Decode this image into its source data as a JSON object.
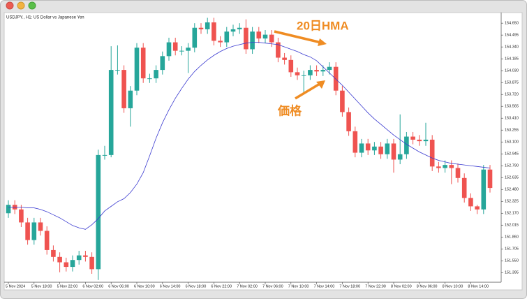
{
  "chart_data": {
    "type": "candlestick",
    "title": "USDJPY., H1:  US Dollar vs Japanese Yen",
    "annotations": [
      "20日HMA",
      "価格"
    ],
    "categories": [
      "5 Nov 2024",
      null,
      null,
      null,
      "5 Nov 18:00",
      null,
      null,
      null,
      "5 Nov 22:00",
      null,
      null,
      null,
      "6 Nov 02:00",
      null,
      null,
      null,
      "6 Nov 06:00",
      null,
      null,
      null,
      "6 Nov 10:00",
      null,
      null,
      null,
      "6 Nov 14:00",
      null,
      null,
      null,
      "6 Nov 18:00",
      null,
      null,
      null,
      "6 Nov 22:00",
      null,
      null,
      null,
      "7 Nov 02:00",
      null,
      null,
      null,
      "7 Nov 06:00",
      null,
      null,
      null,
      "7 Nov 10:00",
      null,
      null,
      null,
      "7 Nov 14:00",
      null,
      null,
      null,
      "7 Nov 18:00",
      null,
      null,
      null,
      "7 Nov 22:00",
      null,
      null,
      null,
      "8 Nov 02:00",
      null,
      null,
      null,
      "8 Nov 06:00",
      null,
      null,
      null,
      "8 Nov 10:00",
      null,
      null,
      null,
      "8 Nov 14:00",
      null,
      null,
      null
    ],
    "open": [
      152.17,
      152.28,
      152.22,
      152.05,
      151.82,
      152.05,
      151.94,
      151.69,
      151.6,
      151.53,
      151.47,
      151.56,
      151.62,
      151.6,
      151.44,
      152.93,
      152.93,
      154.04,
      154.04,
      153.54,
      153.77,
      154.33,
      153.93,
      153.93,
      154.04,
      154.22,
      154.4,
      154.29,
      154.29,
      154.33,
      154.59,
      154.57,
      154.66,
      154.42,
      154.4,
      154.54,
      154.57,
      154.59,
      154.31,
      154.54,
      154.45,
      154.5,
      154.4,
      154.2,
      154.17,
      154.01,
      153.97,
      153.97,
      154.04,
      154.02,
      154.04,
      154.08,
      153.77,
      153.49,
      153.24,
      152.96,
      153.08,
      152.99,
      153.04,
      152.94,
      153.08,
      152.87,
      152.94,
      153.17,
      153.13,
      153.11,
      153.13,
      152.78,
      152.76,
      152.8,
      152.76,
      152.63,
      152.37,
      152.26,
      152.22,
      152.74
    ],
    "high": [
      152.34,
      152.34,
      152.28,
      152.11,
      152.11,
      152.11,
      152.0,
      151.75,
      151.66,
      151.59,
      151.62,
      151.68,
      151.68,
      151.66,
      153.0,
      153.05,
      154.35,
      154.36,
      154.1,
      153.83,
      154.39,
      154.39,
      153.99,
      154.1,
      154.28,
      154.46,
      154.46,
      154.35,
      154.39,
      154.65,
      154.65,
      154.72,
      154.72,
      154.48,
      154.6,
      154.63,
      154.65,
      154.7,
      154.6,
      154.6,
      154.56,
      154.56,
      154.46,
      154.26,
      154.23,
      154.07,
      154.03,
      154.1,
      154.1,
      154.1,
      154.14,
      154.14,
      153.83,
      153.55,
      153.3,
      153.14,
      153.14,
      153.1,
      153.1,
      153.14,
      153.14,
      153.46,
      153.23,
      153.23,
      153.19,
      153.35,
      153.19,
      152.84,
      152.86,
      152.86,
      152.82,
      152.69,
      152.43,
      152.28,
      152.8,
      152.8
    ],
    "low": [
      152.11,
      152.16,
      151.99,
      151.76,
      151.76,
      151.88,
      151.63,
      151.54,
      151.4,
      151.41,
      151.41,
      151.5,
      151.54,
      151.38,
      151.3,
      152.87,
      152.9,
      153.98,
      153.48,
      153.3,
      153.71,
      153.87,
      153.87,
      153.87,
      153.98,
      154.16,
      154.23,
      154.23,
      154.0,
      154.27,
      154.51,
      154.51,
      154.36,
      154.34,
      154.34,
      154.48,
      154.51,
      154.25,
      154.25,
      154.39,
      154.39,
      154.34,
      154.14,
      154.11,
      153.95,
      153.91,
      153.75,
      153.91,
      153.96,
      153.96,
      153.98,
      153.71,
      153.43,
      153.18,
      152.9,
      152.9,
      152.93,
      152.93,
      152.88,
      152.88,
      152.7,
      152.81,
      152.88,
      153.07,
      153.05,
      153.05,
      152.72,
      152.7,
      152.7,
      152.55,
      152.57,
      152.31,
      152.2,
      152.16,
      152.16,
      152.44
    ],
    "close": [
      152.28,
      152.22,
      152.05,
      151.82,
      152.05,
      151.94,
      151.69,
      151.6,
      151.53,
      151.47,
      151.56,
      151.62,
      151.6,
      151.44,
      152.93,
      152.93,
      154.04,
      154.04,
      153.54,
      153.77,
      154.33,
      153.93,
      153.93,
      154.04,
      154.22,
      154.4,
      154.29,
      154.29,
      154.33,
      154.59,
      154.57,
      154.66,
      154.42,
      154.4,
      154.54,
      154.57,
      154.59,
      154.31,
      154.54,
      154.45,
      154.5,
      154.4,
      154.2,
      154.17,
      154.01,
      153.97,
      153.97,
      154.04,
      154.02,
      154.04,
      154.08,
      153.77,
      153.49,
      153.24,
      152.96,
      153.08,
      152.99,
      153.04,
      152.94,
      153.08,
      152.87,
      152.94,
      153.17,
      153.13,
      153.11,
      153.13,
      152.78,
      152.76,
      152.8,
      152.76,
      152.63,
      152.37,
      152.26,
      152.22,
      152.74,
      152.5
    ],
    "up_color": "#26a69a",
    "down_color": "#ef5350",
    "hma": {
      "color": "#3a3ad0",
      "values": [
        152.25,
        152.25,
        152.25,
        152.24,
        152.24,
        152.22,
        152.19,
        152.15,
        152.11,
        152.06,
        152.01,
        151.98,
        151.96,
        152.02,
        152.1,
        152.2,
        152.26,
        152.32,
        152.36,
        152.44,
        152.55,
        152.7,
        152.92,
        153.15,
        153.35,
        153.52,
        153.67,
        153.8,
        153.92,
        154.02,
        154.1,
        154.17,
        154.23,
        154.28,
        154.32,
        154.35,
        154.37,
        154.39,
        154.4,
        154.4,
        154.39,
        154.38,
        154.37,
        154.34,
        154.31,
        154.28,
        154.24,
        154.21,
        154.16,
        154.08,
        154.0,
        153.92,
        153.84,
        153.75,
        153.66,
        153.57,
        153.48,
        153.4,
        153.33,
        153.26,
        153.19,
        153.13,
        153.07,
        153.02,
        152.97,
        152.93,
        152.89,
        152.86,
        152.84,
        152.82,
        152.81,
        152.8,
        152.79,
        152.78,
        152.77,
        152.76
      ]
    },
    "ylim": [
      151.27,
      154.77
    ],
    "yticks": [
      {
        "value": 154.65,
        "label": "154.650"
      },
      {
        "value": 154.495,
        "label": "154.495"
      },
      {
        "value": 154.34,
        "label": "154.340"
      },
      {
        "value": 154.185,
        "label": "154.185"
      },
      {
        "value": 154.03,
        "label": "154.030"
      },
      {
        "value": 153.875,
        "label": "153.875"
      },
      {
        "value": 153.72,
        "label": "153.720"
      },
      {
        "value": 153.565,
        "label": "153.565"
      },
      {
        "value": 153.41,
        "label": "153.410"
      },
      {
        "value": 153.255,
        "label": "153.255"
      },
      {
        "value": 153.1,
        "label": "153.100"
      },
      {
        "value": 152.945,
        "label": "152.945"
      },
      {
        "value": 152.79,
        "label": "152.790"
      },
      {
        "value": 152.635,
        "label": "152.635"
      },
      {
        "value": 152.48,
        "label": "152.480"
      },
      {
        "value": 152.325,
        "label": "152.325"
      },
      {
        "value": 152.17,
        "label": "152.170"
      },
      {
        "value": 152.015,
        "label": "152.015"
      },
      {
        "value": 151.86,
        "label": "151.860"
      },
      {
        "value": 151.705,
        "label": "151.705"
      },
      {
        "value": 151.55,
        "label": "151.550"
      },
      {
        "value": 151.395,
        "label": "151.395"
      }
    ]
  }
}
